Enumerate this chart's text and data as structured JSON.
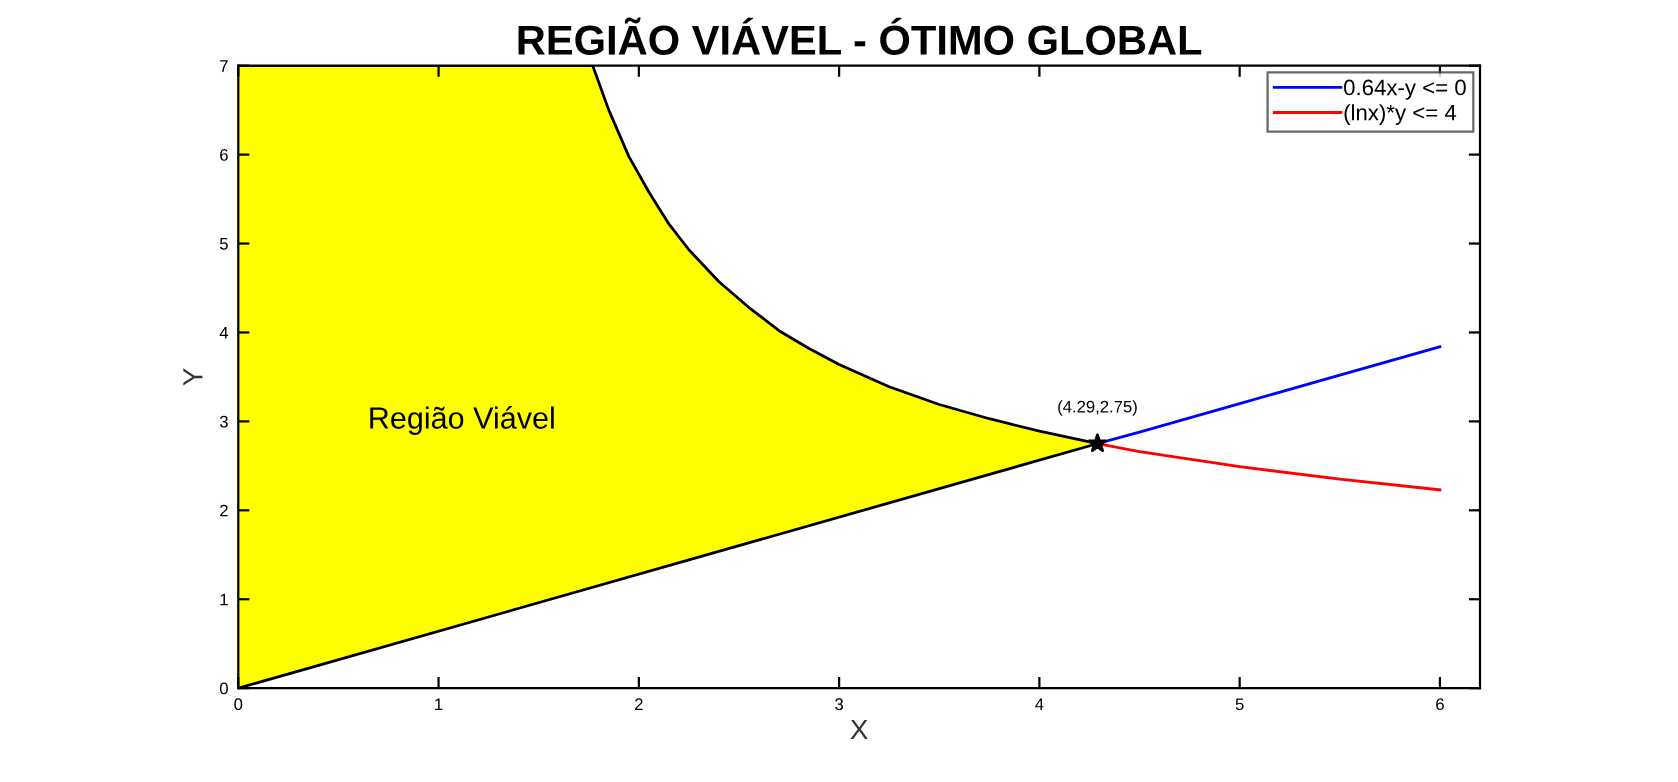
{
  "chart_data": {
    "type": "line",
    "title": "REGIÃO VIÁVEL - ÓTIMO GLOBAL",
    "xlabel": "X",
    "ylabel": "Y",
    "series": [
      {
        "type": "line",
        "color": "#000000",
        "x": [
          0,
          4.29
        ],
        "values": [
          0,
          2.75
        ]
      },
      {
        "type": "area",
        "color": "#ffff00",
        "x": [
          0,
          1.0,
          1.77,
          1.85,
          1.95,
          2.05,
          2.15,
          2.25,
          2.4,
          2.55,
          2.7,
          2.85,
          3.0,
          3.25,
          3.5,
          3.75,
          4.0,
          4.29
        ],
        "values": [
          7,
          7,
          7,
          6.5,
          5.98,
          5.58,
          5.22,
          4.93,
          4.57,
          4.28,
          4.02,
          3.82,
          3.64,
          3.39,
          3.19,
          3.03,
          2.89,
          2.75
        ]
      },
      {
        "name": "0.64x-y <= 0",
        "color": "#0000ff",
        "x": [
          4.29,
          4.5,
          5.0,
          5.5,
          6.0
        ],
        "values": [
          2.75,
          2.88,
          3.2,
          3.52,
          3.84
        ]
      },
      {
        "name": "(lnx)*y <= 4",
        "color": "#ff0000",
        "x": [
          4.29,
          4.5,
          5.0,
          5.5,
          6.0
        ],
        "values": [
          2.75,
          2.66,
          2.49,
          2.35,
          2.23
        ]
      },
      {
        "type": "scatter",
        "marker": "star",
        "color": "#000000",
        "x": [
          4.29
        ],
        "values": [
          2.75
        ]
      }
    ],
    "annotations": [
      "Região Viável",
      {
        "text": "(4.29,2.75)",
        "x": 4.29,
        "y": 2.75
      }
    ],
    "xlim": [
      0,
      6.2
    ],
    "ylim": [
      0,
      7
    ],
    "xticks": [
      0,
      1,
      2,
      3,
      4,
      5,
      6
    ],
    "yticks": [
      0,
      1,
      2,
      3,
      4,
      5,
      6,
      7
    ],
    "grid": false,
    "legend": "top right"
  }
}
